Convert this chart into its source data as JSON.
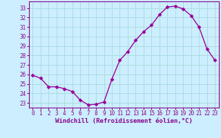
{
  "x": [
    0,
    1,
    2,
    3,
    4,
    5,
    6,
    7,
    8,
    9,
    10,
    11,
    12,
    13,
    14,
    15,
    16,
    17,
    18,
    19,
    20,
    21,
    22,
    23
  ],
  "y": [
    25.9,
    25.6,
    24.7,
    24.7,
    24.5,
    24.2,
    23.3,
    22.8,
    22.85,
    23.1,
    25.5,
    27.5,
    28.4,
    29.6,
    30.5,
    31.2,
    32.3,
    33.1,
    33.2,
    32.9,
    32.2,
    31.0,
    28.7,
    27.5
  ],
  "line_color": "#990099",
  "marker": "D",
  "markersize": 2.5,
  "linewidth": 1.0,
  "xlabel": "Windchill (Refroidissement éolien,°C)",
  "ylabel_ticks": [
    23,
    24,
    25,
    26,
    27,
    28,
    29,
    30,
    31,
    32,
    33
  ],
  "ylim": [
    22.5,
    33.7
  ],
  "xlim": [
    -0.5,
    23.5
  ],
  "xtick_labels": [
    "0",
    "1",
    "2",
    "3",
    "4",
    "5",
    "6",
    "7",
    "8",
    "9",
    "10",
    "11",
    "12",
    "13",
    "14",
    "15",
    "16",
    "17",
    "18",
    "19",
    "20",
    "21",
    "22",
    "23"
  ],
  "background_color": "#cceeff",
  "grid_color": "#aadddd",
  "tick_color": "#880088",
  "tick_fontsize": 5.5,
  "label_fontsize": 6.5
}
